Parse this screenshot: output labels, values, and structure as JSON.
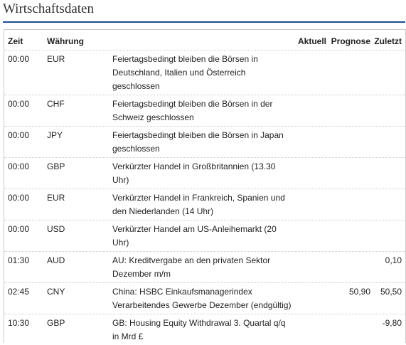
{
  "header": {
    "title": "Wirtschaftsdaten"
  },
  "table": {
    "columns": [
      "Zeit",
      "Währung",
      "Aktuell",
      "Prognose",
      "Zuletzt"
    ],
    "rows": [
      {
        "time": "00:00",
        "currency": "EUR",
        "event": [
          "Feiertagsbedingt bleiben die Börsen in",
          "Deutschland, Italien und Österreich",
          "geschlossen"
        ]
      },
      {
        "time": "00:00",
        "currency": "CHF",
        "event": [
          "Feiertagsbedingt bleiben die Börsen in der",
          "Schweiz geschlossen"
        ]
      },
      {
        "time": "00:00",
        "currency": "JPY",
        "event": [
          "Feiertagsbedingt bleiben die Börsen in Japan",
          "geschlossen"
        ]
      },
      {
        "time": "00:00",
        "currency": "GBP",
        "event": [
          "Verkürzter Handel in Großbritannien (13.30",
          "Uhr)"
        ]
      },
      {
        "time": "00:00",
        "currency": "EUR",
        "event": [
          "Verkürzter Handel in Frankreich, Spanien und",
          "den Niederlanden (14 Uhr)"
        ]
      },
      {
        "time": "00:00",
        "currency": "USD",
        "event": [
          "Verkürzter Handel am US-Anleihemarkt (20",
          "Uhr)"
        ]
      },
      {
        "time": "01:30",
        "currency": "AUD",
        "event": [
          "AU: Kreditvergabe an den privaten Sektor",
          "Dezember m/m"
        ],
        "zuletzt": "0,10"
      },
      {
        "time": "02:45",
        "currency": "CNY",
        "event": [
          "China: HSBC Einkaufsmanagerindex",
          "Verarbeitendes Gewerbe Dezember (endgültig)"
        ],
        "prognose": "50,90",
        "zuletzt": "50,50"
      },
      {
        "time": "10:30",
        "currency": "GBP",
        "event": [
          "GB: Housing Equity Withdrawal 3. Quartal q/q",
          "in Mrd £"
        ],
        "zuletzt": "-9,80"
      }
    ]
  }
}
